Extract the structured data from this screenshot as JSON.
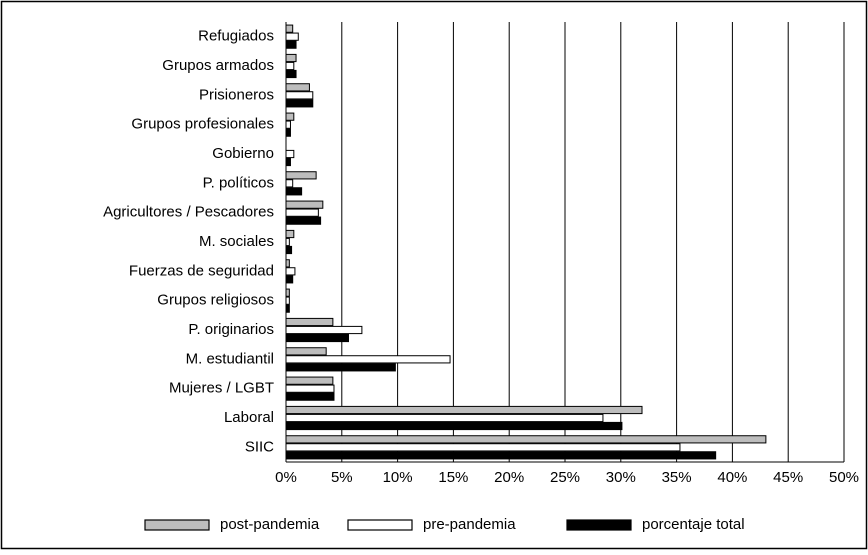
{
  "chart_data": {
    "type": "hbar",
    "categories": [
      "Refugiados",
      "Grupos armados",
      "Prisioneros",
      "Grupos profesionales",
      "Gobierno",
      "P. políticos",
      "Agricultores / Pescadores",
      "M. sociales",
      "Fuerzas de seguridad",
      "Grupos religiosos",
      "P. originarios",
      "M. estudiantil",
      "Mujeres / LGBT",
      "Laboral",
      "SIIC"
    ],
    "series": [
      {
        "name": "post-pandemia",
        "color": "#bdbdbd",
        "values": [
          0.6,
          0.9,
          2.1,
          0.7,
          0,
          2.7,
          3.3,
          0.7,
          0.3,
          0.3,
          4.2,
          3.6,
          4.2,
          31.9,
          43.0
        ]
      },
      {
        "name": "pre-pandemia",
        "color": "#ffffff",
        "values": [
          1.1,
          0.7,
          2.4,
          0.4,
          0.7,
          0.6,
          2.9,
          0.3,
          0.8,
          0.3,
          6.8,
          14.7,
          4.3,
          28.4,
          35.3
        ]
      },
      {
        "name": "porcentaje total",
        "color": "#000000",
        "values": [
          0.9,
          0.9,
          2.4,
          0.4,
          0.4,
          1.4,
          3.1,
          0.5,
          0.6,
          0.3,
          5.6,
          9.8,
          4.3,
          30.1,
          38.5
        ]
      }
    ],
    "xlim": [
      0,
      50
    ],
    "xticks": [
      {
        "value": 0,
        "label": "0%"
      },
      {
        "value": 5,
        "label": "5%"
      },
      {
        "value": 10,
        "label": "10%"
      },
      {
        "value": 15,
        "label": "15%"
      },
      {
        "value": 20,
        "label": "20%"
      },
      {
        "value": 25,
        "label": "25%"
      },
      {
        "value": 30,
        "label": "30%"
      },
      {
        "value": 35,
        "label": "35%"
      },
      {
        "value": 40,
        "label": "40%"
      },
      {
        "value": 45,
        "label": "45%"
      },
      {
        "value": 50,
        "label": "50%"
      }
    ],
    "grid": true,
    "legend": "bottom"
  }
}
